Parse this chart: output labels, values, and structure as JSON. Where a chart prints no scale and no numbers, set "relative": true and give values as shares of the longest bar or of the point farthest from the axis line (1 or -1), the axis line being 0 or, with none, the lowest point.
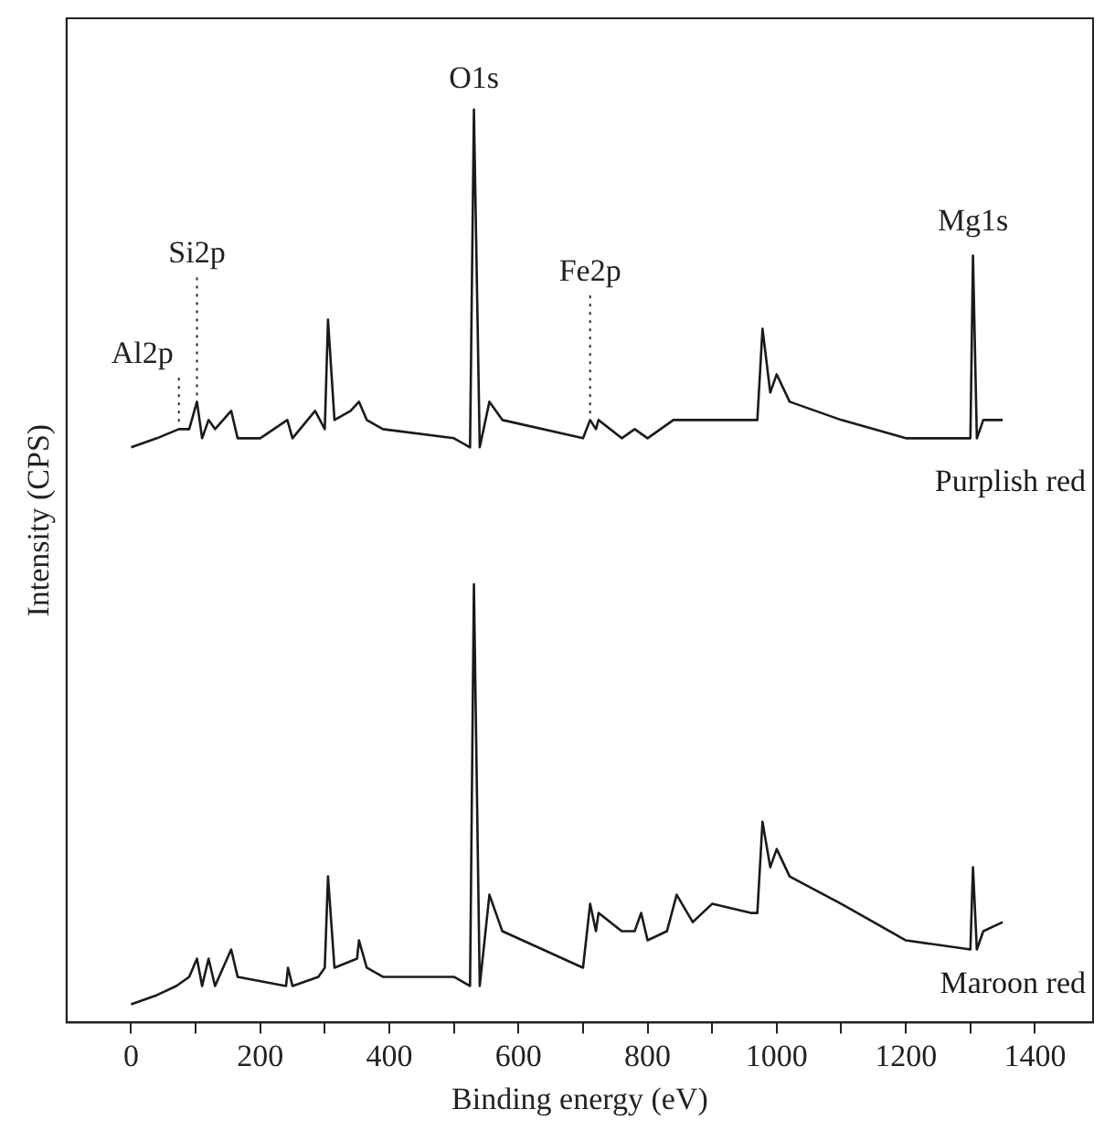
{
  "chart_data": {
    "type": "line",
    "relative": true,
    "xlabel": "Binding energy (eV)",
    "ylabel": "Intensity (CPS)",
    "xlim": [
      -100,
      1490
    ],
    "xticks": [
      0,
      {
        "value": 100,
        "label": null
      },
      200,
      {
        "value": 300,
        "label": null
      },
      400,
      {
        "value": 500,
        "label": null
      },
      600,
      {
        "value": 700,
        "label": null
      },
      800,
      {
        "value": 900,
        "label": null
      },
      1000,
      {
        "value": 1100,
        "label": null
      },
      1200,
      {
        "value": 1300,
        "label": null
      },
      1400
    ],
    "grid": false,
    "legend": false,
    "marker": "none",
    "line_style": "solid",
    "series": [
      {
        "name": "Purplish red",
        "color": "#1a1a1a",
        "x": [
          0,
          40,
          74,
          90,
          102,
          110,
          120,
          130,
          155,
          165,
          200,
          242,
          250,
          285,
          300,
          305,
          315,
          340,
          353,
          365,
          390,
          500,
          525,
          531,
          540,
          555,
          575,
          700,
          711,
          720,
          724,
          760,
          780,
          800,
          840,
          880,
          900,
          960,
          970,
          978,
          990,
          1000,
          1020,
          1100,
          1200,
          1300,
          1304,
          1310,
          1320,
          1350
        ],
        "values": [
          0.63,
          0.64,
          0.65,
          0.65,
          0.68,
          0.64,
          0.66,
          0.65,
          0.67,
          0.64,
          0.64,
          0.66,
          0.64,
          0.67,
          0.65,
          0.77,
          0.66,
          0.67,
          0.68,
          0.66,
          0.65,
          0.64,
          0.63,
          1,
          0.63,
          0.68,
          0.66,
          0.64,
          0.66,
          0.65,
          0.66,
          0.64,
          0.65,
          0.64,
          0.66,
          0.66,
          0.66,
          0.66,
          0.66,
          0.76,
          0.69,
          0.71,
          0.68,
          0.66,
          0.64,
          0.64,
          0.84,
          0.64,
          0.66,
          0.66
        ]
      },
      {
        "name": "Maroon red",
        "color": "#1a1a1a",
        "x": [
          0,
          40,
          70,
          90,
          102,
          110,
          120,
          130,
          155,
          165,
          240,
          243,
          250,
          290,
          300,
          305,
          315,
          350,
          353,
          365,
          390,
          500,
          525,
          531,
          540,
          555,
          575,
          700,
          711,
          720,
          724,
          760,
          780,
          790,
          800,
          830,
          845,
          870,
          900,
          960,
          970,
          978,
          990,
          1000,
          1020,
          1100,
          1200,
          1300,
          1304,
          1310,
          1320,
          1350
        ],
        "values": [
          0.02,
          0.03,
          0.04,
          0.05,
          0.07,
          0.04,
          0.07,
          0.04,
          0.08,
          0.05,
          0.04,
          0.06,
          0.04,
          0.05,
          0.06,
          0.16,
          0.06,
          0.07,
          0.09,
          0.06,
          0.05,
          0.05,
          0.04,
          0.48,
          0.04,
          0.14,
          0.1,
          0.06,
          0.13,
          0.1,
          0.12,
          0.1,
          0.1,
          0.12,
          0.09,
          0.1,
          0.14,
          0.11,
          0.13,
          0.12,
          0.12,
          0.22,
          0.17,
          0.19,
          0.16,
          0.13,
          0.09,
          0.08,
          0.17,
          0.08,
          0.1,
          0.11
        ]
      }
    ],
    "annotations": [
      {
        "text": "Al2p",
        "x": 74,
        "y": 0.65
      },
      {
        "text": "Si2p",
        "x": 102,
        "y": 0.68
      },
      {
        "text": "O1s",
        "x": 531,
        "y": 1
      },
      {
        "text": "Fe2p",
        "x": 711,
        "y": 0.66
      },
      {
        "text": "Mg1s",
        "x": 1304,
        "y": 0.84
      }
    ]
  }
}
